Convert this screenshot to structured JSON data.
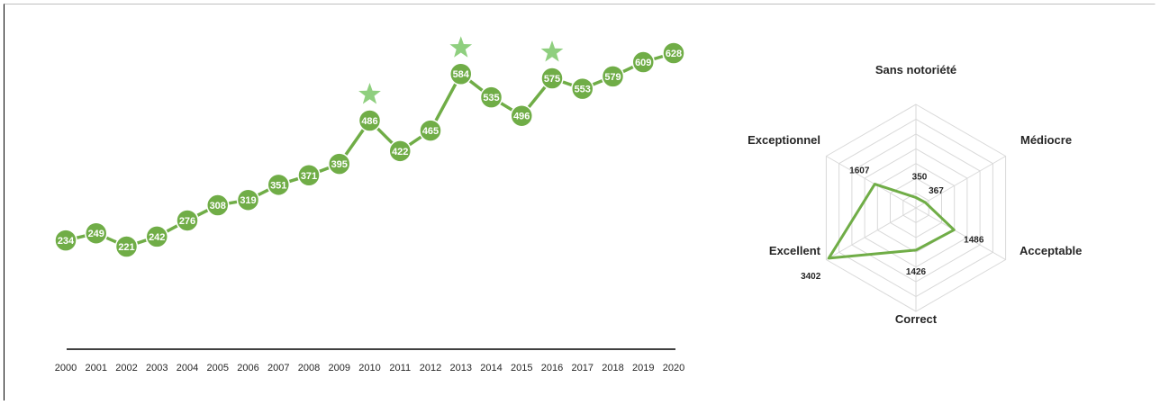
{
  "chart_data": [
    {
      "type": "line",
      "x": [
        "2000",
        "2001",
        "2002",
        "2003",
        "2004",
        "2005",
        "2006",
        "2007",
        "2008",
        "2009",
        "2010",
        "2011",
        "2012",
        "2013",
        "2014",
        "2015",
        "2016",
        "2017",
        "2018",
        "2019",
        "2020"
      ],
      "series": [
        {
          "values": [
            234,
            249,
            221,
            242,
            276,
            308,
            319,
            351,
            371,
            395,
            486,
            422,
            465,
            584,
            535,
            496,
            575,
            553,
            579,
            609,
            628
          ]
        }
      ],
      "highlighted": [
        "2010",
        "2013",
        "2016"
      ],
      "data_labels": true,
      "y_axis_visible": false,
      "grid": false,
      "color": "#70ad47",
      "highlight_color": "#8fcf7f"
    },
    {
      "type": "radar",
      "categories": [
        "Sans notoriété",
        "Médiocre",
        "Acceptable",
        "Correct",
        "Excellent",
        "Exceptionnel"
      ],
      "values": [
        350,
        367,
        1486,
        1426,
        3402,
        1607
      ],
      "grid": true,
      "color": "#70ad47"
    }
  ]
}
